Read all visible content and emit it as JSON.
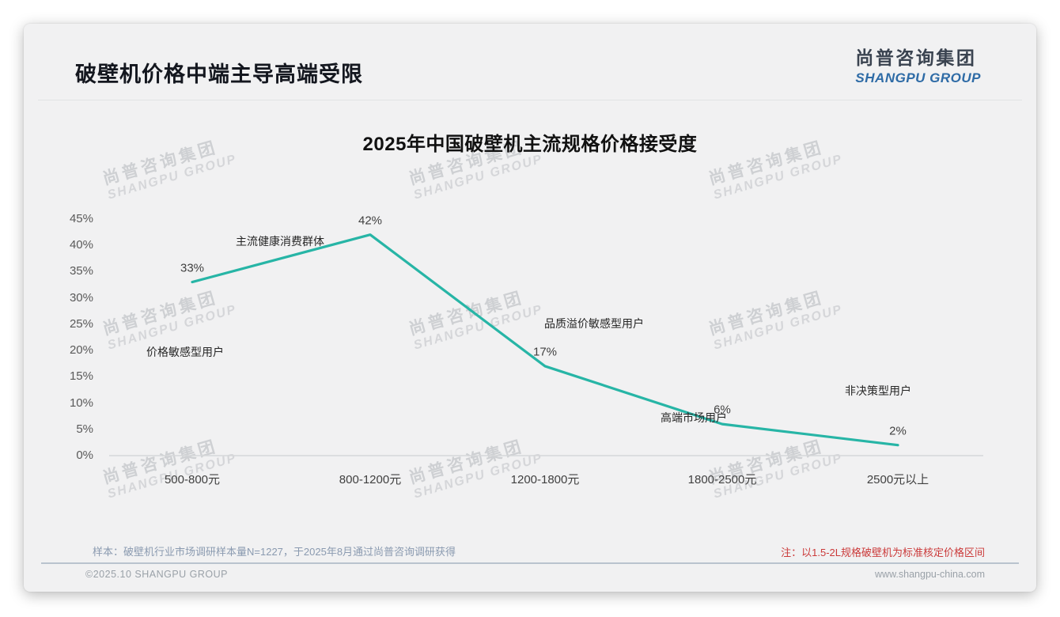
{
  "header": {
    "title": "破壁机价格中端主导高端受限"
  },
  "logo": {
    "cn": "尚普咨询集团",
    "en": "SHANGPU GROUP"
  },
  "watermark": {
    "cn": "尚普咨询集团",
    "en": "SHANGPU GROUP"
  },
  "chart_data": {
    "type": "line",
    "title": "2025年中国破壁机主流规格价格接受度",
    "categories": [
      "500-800元",
      "800-1200元",
      "1200-1800元",
      "1800-2500元",
      "2500元以上"
    ],
    "values": [
      33,
      42,
      17,
      6,
      2
    ],
    "value_labels": [
      "33%",
      "42%",
      "17%",
      "6%",
      "2%"
    ],
    "annotations": [
      "价格敏感型用户",
      "主流健康消费群体",
      "品质溢价敏感型用户",
      "高端市场用户",
      "非决策型用户"
    ],
    "xlabel": "",
    "ylabel": "",
    "ylim": [
      0,
      45
    ],
    "ytick_step": 5,
    "ytick_suffix": "%",
    "grid": false,
    "legend": null,
    "line_color": "#27b5a6"
  },
  "footnotes": {
    "sample": "样本：破壁机行业市场调研样本量N=1227，于2025年8月通过尚普咨询调研获得",
    "note": "注：以1.5-2L规格破壁机为标准核定价格区间"
  },
  "footer": {
    "left": "©2025.10 SHANGPU GROUP",
    "right": "www.shangpu-china.com"
  },
  "colors": {
    "line": "#27b5a6",
    "note_red": "#cb3a3a",
    "logo_blue": "#2e6ba6",
    "slide_bg": "#f1f1f2"
  }
}
